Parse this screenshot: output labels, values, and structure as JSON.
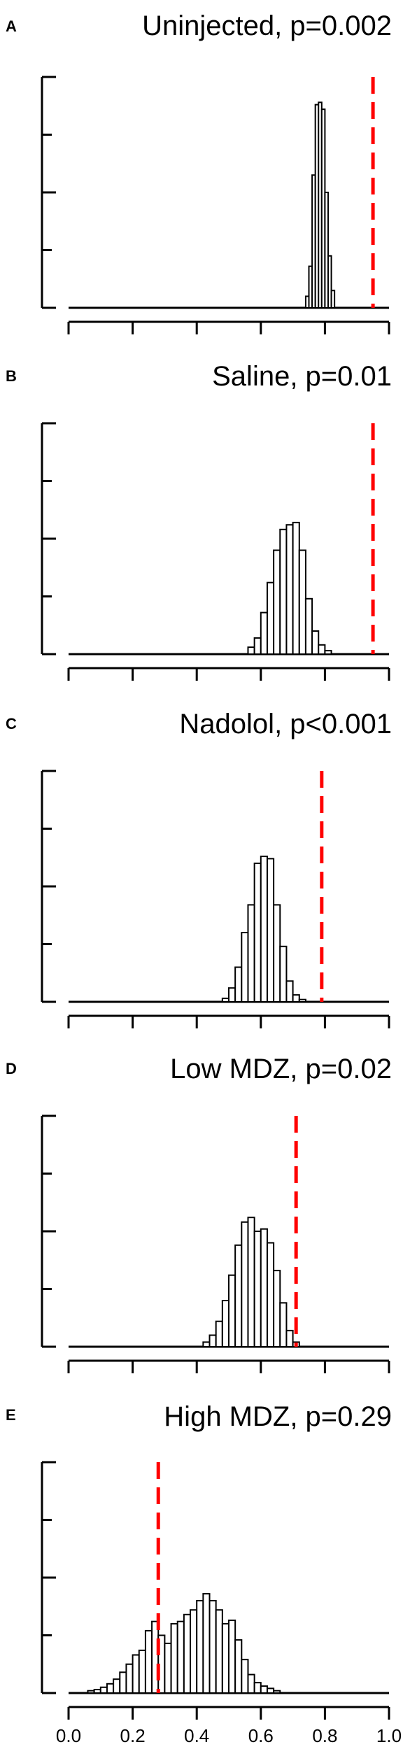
{
  "colors": {
    "observed_line": "#ff0000",
    "bar_fill": "#ffffff",
    "bar_edge": "#000000"
  },
  "chart_data": [
    {
      "type": "bar",
      "panel": "A",
      "title": "Uninjected, p=0.002",
      "xlim": [
        0,
        1
      ],
      "ylim": [
        0,
        200
      ],
      "bin_width": 0.01,
      "bin_starts": [
        0.74,
        0.75,
        0.76,
        0.77,
        0.78,
        0.79,
        0.8,
        0.81,
        0.82
      ],
      "counts": [
        10,
        36,
        115,
        176,
        178,
        172,
        100,
        45,
        15
      ],
      "observed": 0.95
    },
    {
      "type": "bar",
      "panel": "B",
      "title": "Saline, p=0.01",
      "xlim": [
        0,
        1
      ],
      "ylim": [
        0,
        200
      ],
      "bin_width": 0.02,
      "bin_starts": [
        0.56,
        0.58,
        0.6,
        0.62,
        0.64,
        0.66,
        0.68,
        0.7,
        0.72,
        0.74,
        0.76,
        0.78,
        0.8
      ],
      "counts": [
        6,
        14,
        36,
        62,
        90,
        108,
        112,
        114,
        90,
        48,
        20,
        8,
        3
      ],
      "observed": 0.95
    },
    {
      "type": "bar",
      "panel": "C",
      "title": "Nadolol, p<0.001",
      "xlim": [
        0,
        1
      ],
      "ylim": [
        0,
        200
      ],
      "bin_width": 0.02,
      "bin_starts": [
        0.48,
        0.5,
        0.52,
        0.54,
        0.56,
        0.58,
        0.6,
        0.62,
        0.64,
        0.66,
        0.68,
        0.7,
        0.72
      ],
      "counts": [
        3,
        12,
        30,
        60,
        84,
        120,
        126,
        124,
        84,
        48,
        18,
        6,
        2
      ],
      "observed": 0.79
    },
    {
      "type": "bar",
      "panel": "D",
      "title": "Low MDZ, p=0.02",
      "xlim": [
        0,
        1
      ],
      "ylim": [
        0,
        200
      ],
      "bin_width": 0.02,
      "bin_starts": [
        0.42,
        0.44,
        0.46,
        0.48,
        0.5,
        0.52,
        0.54,
        0.56,
        0.58,
        0.6,
        0.62,
        0.64,
        0.66,
        0.68,
        0.7
      ],
      "counts": [
        4,
        10,
        22,
        40,
        62,
        88,
        108,
        112,
        100,
        102,
        90,
        66,
        38,
        14,
        4
      ],
      "observed": 0.71
    },
    {
      "type": "bar",
      "panel": "E",
      "title": "High MDZ, p=0.29",
      "xlim": [
        0,
        1
      ],
      "ylim": [
        0,
        200
      ],
      "bin_width": 0.02,
      "bin_starts": [
        0.06,
        0.08,
        0.1,
        0.12,
        0.14,
        0.16,
        0.18,
        0.2,
        0.22,
        0.24,
        0.26,
        0.28,
        0.3,
        0.32,
        0.34,
        0.36,
        0.38,
        0.4,
        0.42,
        0.44,
        0.46,
        0.48,
        0.5,
        0.52,
        0.54,
        0.56,
        0.58,
        0.6,
        0.62,
        0.64
      ],
      "counts": [
        2,
        3,
        5,
        8,
        12,
        18,
        25,
        33,
        37,
        54,
        62,
        50,
        43,
        60,
        62,
        68,
        72,
        80,
        86,
        80,
        72,
        60,
        63,
        46,
        29,
        16,
        9,
        6,
        4,
        2
      ],
      "observed": 0.28,
      "x_ticks": [
        "0.0",
        "0.2",
        "0.4",
        "0.6",
        "0.8",
        "1.0"
      ]
    }
  ]
}
